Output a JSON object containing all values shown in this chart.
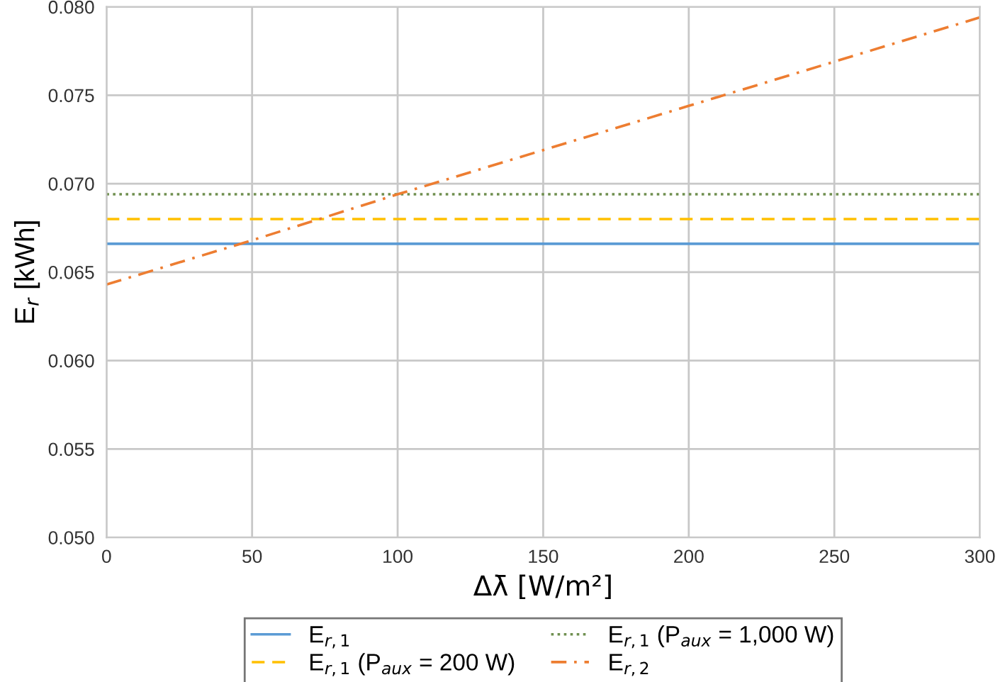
{
  "chart_data": {
    "type": "line",
    "xlabel": "Δλ̄ [W/m²]",
    "ylabel": "E$_{r}$ [kWh]",
    "x": [
      0,
      50,
      100,
      150,
      200,
      250,
      300
    ],
    "series": [
      {
        "name": "E$_{r,1}$",
        "color": "#5b9bd5",
        "line_style": "solid",
        "values": [
          0.0666,
          0.0666,
          0.0666,
          0.0666,
          0.0666,
          0.0666,
          0.0666
        ]
      },
      {
        "name": "E$_{r,1}$ (P$_{aux}$ = 1,000 W)",
        "color": "#6f8f4f",
        "line_style": "dotted",
        "values": [
          0.0694,
          0.0694,
          0.0694,
          0.0694,
          0.0694,
          0.0694,
          0.0694
        ]
      },
      {
        "name": "E$_{r,1}$ (P$_{aux}$ = 200 W)",
        "color": "#ffc000",
        "line_style": "dashed",
        "values": [
          0.068,
          0.068,
          0.068,
          0.068,
          0.068,
          0.068,
          0.068
        ]
      },
      {
        "name": "E$_{r,2}$",
        "color": "#ed7d31",
        "line_style": "dashdot",
        "values": [
          0.0643,
          0.0668,
          0.0694,
          0.0719,
          0.0744,
          0.0769,
          0.0794
        ]
      }
    ],
    "xlim": [
      0,
      300
    ],
    "xticks": [
      0,
      50,
      100,
      150,
      200,
      250,
      300
    ],
    "ylim": [
      0.05,
      0.08
    ],
    "yticks": [
      {
        "value": 0.05,
        "label": "0.050"
      },
      {
        "value": 0.055,
        "label": "0.055"
      },
      {
        "value": 0.06,
        "label": "0.060"
      },
      {
        "value": 0.065,
        "label": "0.065"
      },
      {
        "value": 0.07,
        "label": "0.070"
      },
      {
        "value": 0.075,
        "label": "0.075"
      },
      {
        "value": 0.08,
        "label": "0.080"
      }
    ],
    "grid": true,
    "legend": "bottom",
    "marker": "none"
  }
}
